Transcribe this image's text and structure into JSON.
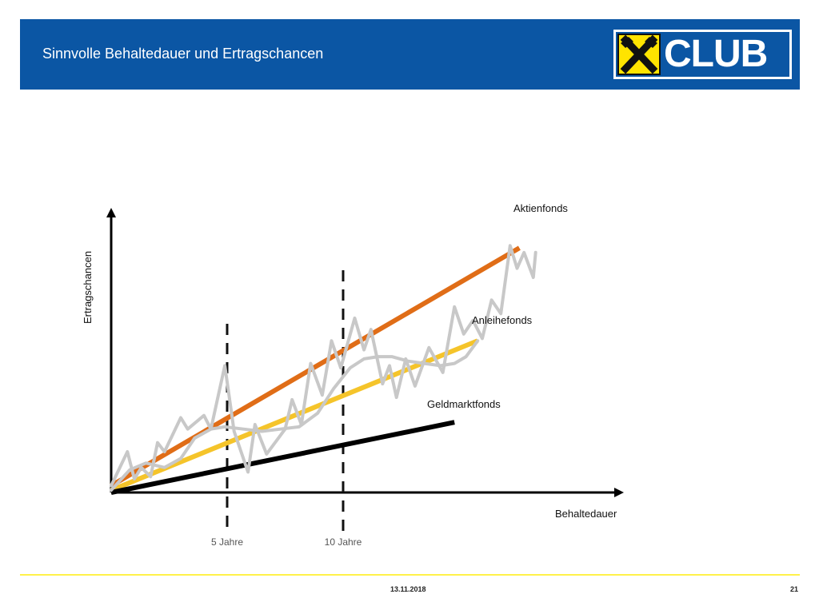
{
  "slide": {
    "title": "Sinnvolle Behaltedauer und Ertragschancen",
    "logo_text": "CLUB",
    "footer": {
      "date": "13.11.2018",
      "page": "21"
    },
    "colors": {
      "header": "#0b56a4",
      "footer_line": "#fff14a",
      "logo_yellow": "#ffe400"
    }
  },
  "chart_data": {
    "type": "line",
    "title": "",
    "xlabel": "Behaltedauer",
    "ylabel": "Ertragschancen",
    "markers": [
      {
        "label": "5 Jahre",
        "x": 5
      },
      {
        "label": "10 Jahre",
        "x": 10
      }
    ],
    "trend_lines": [
      {
        "name": "Aktienfonds",
        "color": "#e06d17",
        "start": [
          0,
          0.3
        ],
        "end": [
          17.6,
          10.8
        ]
      },
      {
        "name": "Anleihefonds",
        "color": "#f5c42a",
        "start": [
          0,
          0.1
        ],
        "end": [
          15.8,
          6.7
        ]
      },
      {
        "name": "Geldmarktfonds",
        "color": "#000000",
        "start": [
          0,
          0
        ],
        "end": [
          14.8,
          3.1
        ]
      }
    ],
    "noisy_series": [
      {
        "name": "Aktienfonds-Verlauf",
        "color": "#c8c8c8",
        "points": [
          [
            0,
            0.3
          ],
          [
            0.7,
            1.8
          ],
          [
            1.0,
            0.6
          ],
          [
            1.3,
            1.1
          ],
          [
            1.7,
            0.7
          ],
          [
            2.0,
            2.2
          ],
          [
            2.3,
            1.8
          ],
          [
            3.0,
            3.3
          ],
          [
            3.3,
            2.8
          ],
          [
            4.0,
            3.4
          ],
          [
            4.3,
            2.8
          ],
          [
            4.9,
            5.6
          ],
          [
            5.3,
            2.7
          ],
          [
            5.9,
            0.9
          ],
          [
            6.2,
            3.0
          ],
          [
            6.7,
            1.7
          ],
          [
            7.5,
            2.8
          ],
          [
            7.8,
            4.1
          ],
          [
            8.2,
            3.0
          ],
          [
            8.6,
            5.7
          ],
          [
            9.1,
            4.3
          ],
          [
            9.5,
            6.7
          ],
          [
            9.9,
            5.5
          ],
          [
            10.5,
            7.7
          ],
          [
            10.9,
            6.3
          ],
          [
            11.2,
            7.2
          ],
          [
            11.7,
            4.8
          ],
          [
            12.0,
            5.6
          ],
          [
            12.3,
            4.2
          ],
          [
            12.7,
            5.9
          ],
          [
            13.1,
            4.7
          ],
          [
            13.7,
            6.4
          ],
          [
            14.3,
            5.3
          ],
          [
            14.8,
            8.2
          ],
          [
            15.2,
            7.0
          ],
          [
            15.6,
            7.6
          ],
          [
            16.0,
            6.8
          ],
          [
            16.4,
            8.5
          ],
          [
            16.8,
            7.9
          ],
          [
            17.2,
            10.9
          ],
          [
            17.5,
            9.9
          ],
          [
            17.8,
            10.6
          ],
          [
            18.2,
            9.5
          ],
          [
            18.3,
            10.6
          ]
        ]
      },
      {
        "name": "Anleihefonds-Verlauf",
        "color": "#c8c8c8",
        "points": [
          [
            0,
            0.1
          ],
          [
            0.8,
            1.0
          ],
          [
            1.5,
            1.3
          ],
          [
            2.3,
            1.1
          ],
          [
            3.0,
            1.5
          ],
          [
            3.6,
            2.4
          ],
          [
            4.3,
            2.8
          ],
          [
            4.9,
            2.9
          ],
          [
            5.7,
            2.8
          ],
          [
            6.5,
            2.7
          ],
          [
            7.3,
            2.8
          ],
          [
            8.1,
            2.9
          ],
          [
            8.9,
            3.5
          ],
          [
            9.6,
            4.6
          ],
          [
            10.3,
            5.5
          ],
          [
            10.9,
            5.9
          ],
          [
            11.5,
            6.0
          ],
          [
            12.1,
            6.0
          ],
          [
            12.8,
            5.8
          ],
          [
            13.5,
            5.7
          ],
          [
            14.2,
            5.6
          ],
          [
            14.8,
            5.7
          ],
          [
            15.3,
            6.0
          ],
          [
            15.8,
            6.7
          ]
        ]
      }
    ],
    "series_labels": [
      {
        "name": "Aktienfonds",
        "text": "Aktienfonds"
      },
      {
        "name": "Anleihefonds",
        "text": "Anleihefonds"
      },
      {
        "name": "Geldmarktfonds",
        "text": "Geldmarktfonds"
      }
    ],
    "xlim": [
      0,
      22
    ],
    "ylim": [
      0,
      12.5
    ],
    "grid": false,
    "legend": "inline-labels"
  }
}
